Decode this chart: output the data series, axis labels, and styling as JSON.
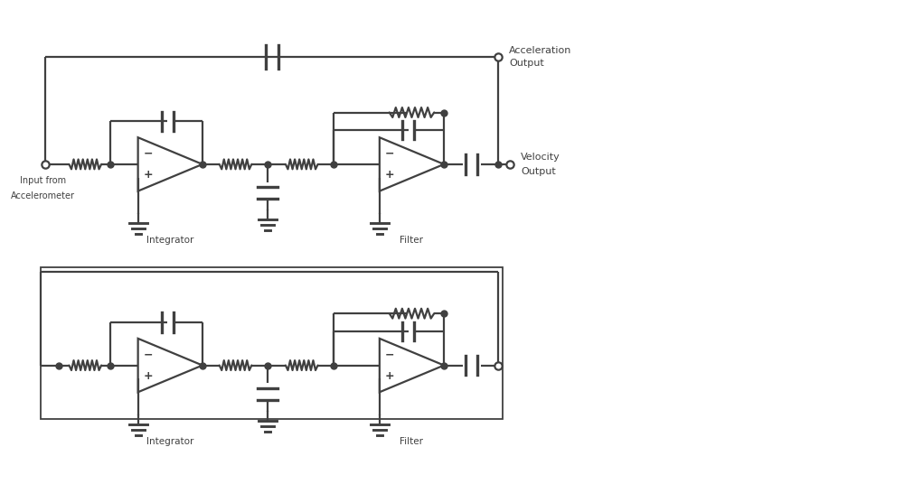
{
  "background_color": "#ffffff",
  "line_color": "#404040",
  "line_width": 1.6,
  "dot_size": 5,
  "fig_width": 10.0,
  "fig_height": 5.36,
  "xlim": [
    0,
    10
  ],
  "ylim": [
    0,
    5.36
  ]
}
